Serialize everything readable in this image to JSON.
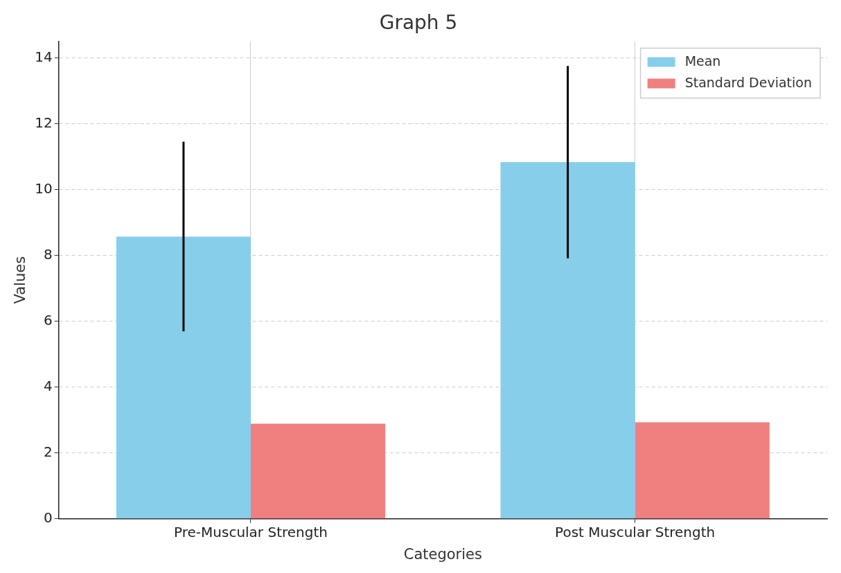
{
  "chart_data": {
    "type": "bar",
    "title": "Graph 5",
    "xlabel": "Categories",
    "ylabel": "Values",
    "categories": [
      "Pre-Muscular Strength",
      "Post Muscular Strength"
    ],
    "series": [
      {
        "name": "Mean",
        "color": "#87ceeb",
        "values": [
          8.57,
          10.83
        ],
        "errors": [
          2.88,
          2.92
        ]
      },
      {
        "name": "Standard Deviation",
        "color": "#f08080",
        "values": [
          2.89,
          2.93
        ]
      }
    ],
    "ylim": [
      0,
      14.5
    ],
    "yticks": [
      0,
      2,
      4,
      6,
      8,
      10,
      12,
      14
    ],
    "grid": true,
    "legend": "top right"
  }
}
